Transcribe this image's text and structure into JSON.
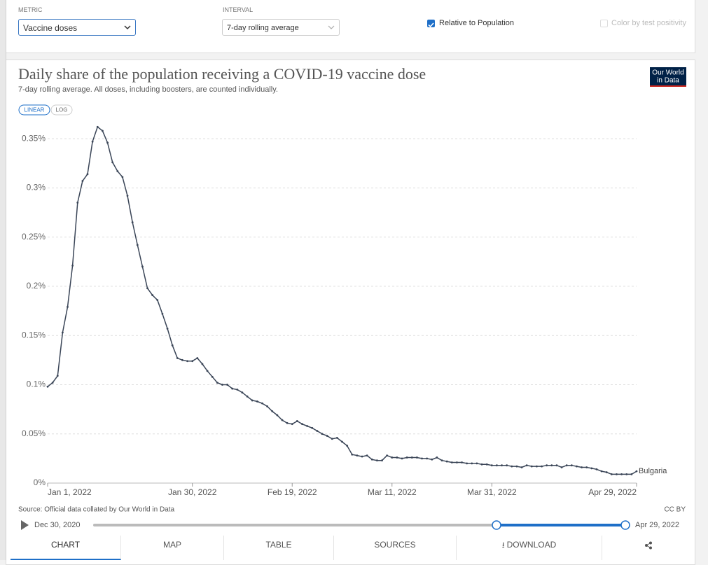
{
  "controls": {
    "metric": {
      "label": "METRIC",
      "value": "Vaccine doses"
    },
    "interval": {
      "label": "INTERVAL",
      "value": "7-day rolling average"
    },
    "relative": {
      "label": "Relative to Population",
      "checked": true
    },
    "positivity": {
      "label": "Color by test positivity",
      "checked": false,
      "enabled": false
    }
  },
  "chart_data": {
    "type": "line",
    "title": "Daily share of the population receiving a COVID-19 vaccine dose",
    "subtitle": "7-day rolling average. All doses, including boosters, are counted individually.",
    "logo": [
      "Our World",
      "in Data"
    ],
    "scale_buttons": [
      "LINEAR",
      "LOG"
    ],
    "log_scale": false,
    "grid": true,
    "x": [
      "2022-01-01",
      "2022-01-02",
      "2022-01-03",
      "2022-01-04",
      "2022-01-05",
      "2022-01-06",
      "2022-01-07",
      "2022-01-08",
      "2022-01-09",
      "2022-01-10",
      "2022-01-11",
      "2022-01-12",
      "2022-01-13",
      "2022-01-14",
      "2022-01-15",
      "2022-01-16",
      "2022-01-17",
      "2022-01-18",
      "2022-01-19",
      "2022-01-20",
      "2022-01-21",
      "2022-01-22",
      "2022-01-23",
      "2022-01-24",
      "2022-01-25",
      "2022-01-26",
      "2022-01-27",
      "2022-01-28",
      "2022-01-29",
      "2022-01-30",
      "2022-01-31",
      "2022-02-01",
      "2022-02-02",
      "2022-02-03",
      "2022-02-04",
      "2022-02-05",
      "2022-02-06",
      "2022-02-07",
      "2022-02-08",
      "2022-02-09",
      "2022-02-10",
      "2022-02-11",
      "2022-02-12",
      "2022-02-13",
      "2022-02-14",
      "2022-02-15",
      "2022-02-16",
      "2022-02-17",
      "2022-02-18",
      "2022-02-19",
      "2022-02-20",
      "2022-02-21",
      "2022-02-22",
      "2022-02-23",
      "2022-02-24",
      "2022-02-25",
      "2022-02-26",
      "2022-02-27",
      "2022-02-28",
      "2022-03-01",
      "2022-03-02",
      "2022-03-03",
      "2022-03-04",
      "2022-03-05",
      "2022-03-06",
      "2022-03-07",
      "2022-03-08",
      "2022-03-09",
      "2022-03-10",
      "2022-03-11",
      "2022-03-12",
      "2022-03-13",
      "2022-03-14",
      "2022-03-15",
      "2022-03-16",
      "2022-03-17",
      "2022-03-18",
      "2022-03-19",
      "2022-03-20",
      "2022-03-21",
      "2022-03-22",
      "2022-03-23",
      "2022-03-24",
      "2022-03-25",
      "2022-03-26",
      "2022-03-27",
      "2022-03-28",
      "2022-03-29",
      "2022-03-30",
      "2022-03-31",
      "2022-04-01",
      "2022-04-02",
      "2022-04-03",
      "2022-04-04",
      "2022-04-05",
      "2022-04-06",
      "2022-04-07",
      "2022-04-08",
      "2022-04-09",
      "2022-04-10",
      "2022-04-11",
      "2022-04-12",
      "2022-04-13",
      "2022-04-14",
      "2022-04-15",
      "2022-04-16",
      "2022-04-17",
      "2022-04-18",
      "2022-04-19",
      "2022-04-20",
      "2022-04-21",
      "2022-04-22",
      "2022-04-23",
      "2022-04-24",
      "2022-04-25",
      "2022-04-26",
      "2022-04-27",
      "2022-04-28",
      "2022-04-29"
    ],
    "series": [
      {
        "name": "Bulgaria",
        "color": "#3a4557",
        "values": [
          0.098,
          0.102,
          0.109,
          0.153,
          0.179,
          0.221,
          0.285,
          0.307,
          0.314,
          0.347,
          0.362,
          0.358,
          0.346,
          0.326,
          0.317,
          0.311,
          0.292,
          0.265,
          0.242,
          0.22,
          0.198,
          0.191,
          0.186,
          0.172,
          0.157,
          0.14,
          0.127,
          0.125,
          0.124,
          0.124,
          0.127,
          0.121,
          0.114,
          0.108,
          0.102,
          0.1,
          0.1,
          0.096,
          0.095,
          0.092,
          0.088,
          0.084,
          0.083,
          0.081,
          0.078,
          0.073,
          0.069,
          0.064,
          0.061,
          0.06,
          0.063,
          0.06,
          0.058,
          0.056,
          0.053,
          0.05,
          0.048,
          0.045,
          0.046,
          0.042,
          0.038,
          0.029,
          0.028,
          0.027,
          0.028,
          0.024,
          0.023,
          0.023,
          0.028,
          0.026,
          0.026,
          0.025,
          0.026,
          0.026,
          0.026,
          0.025,
          0.025,
          0.024,
          0.026,
          0.023,
          0.022,
          0.021,
          0.021,
          0.021,
          0.02,
          0.02,
          0.02,
          0.019,
          0.019,
          0.018,
          0.018,
          0.018,
          0.018,
          0.017,
          0.017,
          0.016,
          0.018,
          0.017,
          0.017,
          0.017,
          0.018,
          0.018,
          0.018,
          0.016,
          0.018,
          0.018,
          0.017,
          0.016,
          0.016,
          0.015,
          0.014,
          0.012,
          0.011,
          0.009,
          0.009,
          0.009,
          0.009,
          0.009,
          0.012
        ]
      }
    ],
    "xlim": [
      "2022-01-01",
      "2022-04-29"
    ],
    "xticks": [
      {
        "value": "2022-01-01",
        "label": "Jan 1, 2022"
      },
      {
        "value": "2022-01-30",
        "label": "Jan 30, 2022"
      },
      {
        "value": "2022-02-19",
        "label": "Feb 19, 2022"
      },
      {
        "value": "2022-03-11",
        "label": "Mar 11, 2022"
      },
      {
        "value": "2022-03-31",
        "label": "Mar 31, 2022"
      },
      {
        "value": "2022-04-29",
        "label": "Apr 29, 2022"
      }
    ],
    "ylim": [
      0,
      0.37
    ],
    "yticks": [
      {
        "value": 0,
        "label": "0%"
      },
      {
        "value": 0.05,
        "label": "0.05%"
      },
      {
        "value": 0.1,
        "label": "0.1%"
      },
      {
        "value": 0.15,
        "label": "0.15%"
      },
      {
        "value": 0.2,
        "label": "0.2%"
      },
      {
        "value": 0.25,
        "label": "0.25%"
      },
      {
        "value": 0.3,
        "label": "0.3%"
      },
      {
        "value": 0.35,
        "label": "0.35%"
      }
    ],
    "source": "Source: Official data collated by Our World in Data",
    "license": "CC BY"
  },
  "timeline": {
    "start": "Dec 30, 2020",
    "end": "Apr 29, 2022"
  },
  "tabs": [
    "CHART",
    "MAP",
    "TABLE",
    "SOURCES",
    "DOWNLOAD"
  ]
}
